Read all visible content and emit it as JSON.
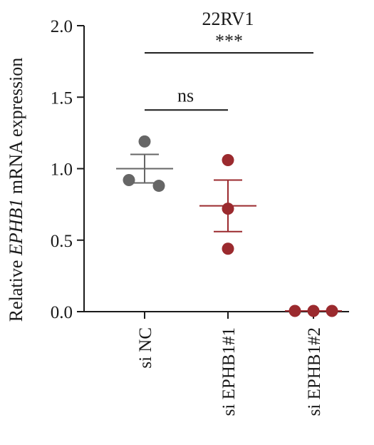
{
  "chart_data": {
    "type": "scatter",
    "title": "22RV1",
    "ylabel_prefix": "Relative ",
    "ylabel_gene": "EPHB1",
    "ylabel_suffix": " mRNA expression",
    "ylim": [
      0,
      2.0
    ],
    "yticks": [
      "0.0",
      "0.5",
      "1.0",
      "1.5",
      "2.0"
    ],
    "categories": [
      "si NC",
      "si EPHB1#1",
      "si EPHB1#2"
    ],
    "series": [
      {
        "category": "si NC",
        "points": [
          0.92,
          1.19,
          0.88
        ],
        "mean": 1.0,
        "sem": [
          0.9,
          1.1
        ],
        "color": "#666666"
      },
      {
        "category": "si EPHB1#1",
        "points": [
          1.06,
          0.72,
          0.44
        ],
        "mean": 0.74,
        "sem": [
          0.56,
          0.92
        ],
        "color": "#9b2a2e"
      },
      {
        "category": "si EPHB1#2",
        "points": [
          0.005,
          0.005,
          0.005
        ],
        "mean": 0.005,
        "sem": [
          0.0,
          0.01
        ],
        "color": "#9b2a2e"
      }
    ],
    "annotations": [
      {
        "text": "ns",
        "from": "si NC",
        "to": "si EPHB1#1",
        "y": 1.41
      },
      {
        "text": "***",
        "from": "si NC",
        "to": "si EPHB1#2",
        "y": 1.81
      }
    ]
  }
}
